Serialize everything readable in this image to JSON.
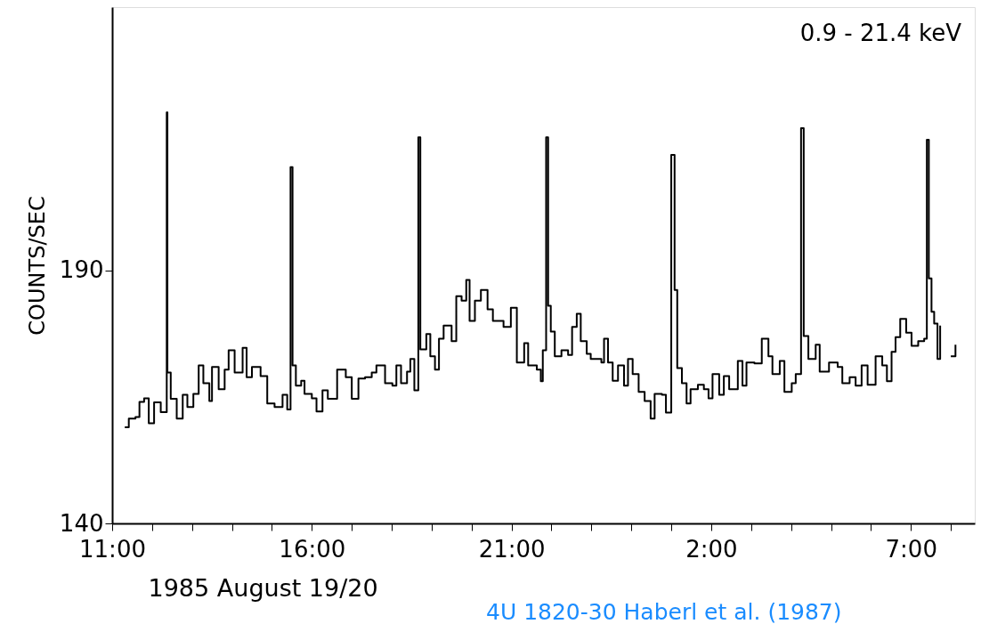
{
  "chart_data": {
    "type": "step",
    "xlabel": "1985 August 19/20",
    "ylabel": "COUNTS/SEC",
    "annotations": [
      "0.9 - 21.4 keV",
      "4U 1820-30 Haberl et al. (1987)"
    ],
    "xlim": [
      "1985-08-19T11:00",
      "1985-08-20T08:36"
    ],
    "ylim": [
      140,
      242
    ],
    "xticks": [
      {
        "value": "1985-08-19T11:00",
        "label": "11:00"
      },
      {
        "value": "1985-08-19T12:00",
        "label": null
      },
      {
        "value": "1985-08-19T13:00",
        "label": null
      },
      {
        "value": "1985-08-19T14:00",
        "label": null
      },
      {
        "value": "1985-08-19T15:00",
        "label": null
      },
      {
        "value": "1985-08-19T16:00",
        "label": "16:00"
      },
      {
        "value": "1985-08-19T17:00",
        "label": null
      },
      {
        "value": "1985-08-19T18:00",
        "label": null
      },
      {
        "value": "1985-08-19T19:00",
        "label": null
      },
      {
        "value": "1985-08-19T20:00",
        "label": null
      },
      {
        "value": "1985-08-19T21:00",
        "label": "21:00"
      },
      {
        "value": "1985-08-19T22:00",
        "label": null
      },
      {
        "value": "1985-08-19T23:00",
        "label": null
      },
      {
        "value": "1985-08-20T00:00",
        "label": null
      },
      {
        "value": "1985-08-20T01:00",
        "label": null
      },
      {
        "value": "1985-08-20T02:00",
        "label": "2:00"
      },
      {
        "value": "1985-08-20T03:00",
        "label": null
      },
      {
        "value": "1985-08-20T04:00",
        "label": null
      },
      {
        "value": "1985-08-20T05:00",
        "label": null
      },
      {
        "value": "1985-08-20T06:00",
        "label": null
      },
      {
        "value": "1985-08-20T07:00",
        "label": "7:00"
      },
      {
        "value": "1985-08-20T08:00",
        "label": null
      }
    ],
    "yticks": [
      140,
      190
    ],
    "grid": false,
    "marker": "none",
    "line_style": "solid",
    "series": [
      {
        "color": "#000000",
        "x": [
          "1985-08-19T11:19",
          "1985-08-19T11:25",
          "1985-08-19T11:35",
          "1985-08-19T11:41",
          "1985-08-19T11:48",
          "1985-08-19T11:55",
          "1985-08-19T12:03",
          "1985-08-19T12:13",
          "1985-08-19T12:22",
          "1985-08-19T12:23",
          "1985-08-19T12:28",
          "1985-08-19T12:37",
          "1985-08-19T12:46",
          "1985-08-19T12:53",
          "1985-08-19T13:02",
          "1985-08-19T13:10",
          "1985-08-19T13:17",
          "1985-08-19T13:26",
          "1985-08-19T13:30",
          "1985-08-19T13:40",
          "1985-08-19T13:49",
          "1985-08-19T13:55",
          "1985-08-19T14:04",
          "1985-08-19T14:16",
          "1985-08-19T14:22",
          "1985-08-19T14:30",
          "1985-08-19T14:43",
          "1985-08-19T14:53",
          "1985-08-19T15:04",
          "1985-08-19T15:16",
          "1985-08-19T15:23",
          "1985-08-19T15:28",
          "1985-08-19T15:31",
          "1985-08-19T15:36",
          "1985-08-19T15:44",
          "1985-08-19T15:49",
          "1985-08-19T16:00",
          "1985-08-19T16:07",
          "1985-08-19T16:16",
          "1985-08-19T16:24",
          "1985-08-19T16:38",
          "1985-08-19T16:51",
          "1985-08-19T17:00",
          "1985-08-19T17:10",
          "1985-08-19T17:20",
          "1985-08-19T17:30",
          "1985-08-19T17:37",
          "1985-08-19T17:50",
          "1985-08-19T18:01",
          "1985-08-19T18:07",
          "1985-08-19T18:14",
          "1985-08-19T18:23",
          "1985-08-19T18:28",
          "1985-08-19T18:34",
          "1985-08-19T18:40",
          "1985-08-19T18:43",
          "1985-08-19T18:52",
          "1985-08-19T18:58",
          "1985-08-19T19:05",
          "1985-08-19T19:11",
          "1985-08-19T19:18",
          "1985-08-19T19:30",
          "1985-08-19T19:37",
          "1985-08-19T19:45",
          "1985-08-19T19:52",
          "1985-08-19T19:57",
          "1985-08-19T20:05",
          "1985-08-19T20:14",
          "1985-08-19T20:24",
          "1985-08-19T20:32",
          "1985-08-19T20:48",
          "1985-08-19T20:59",
          "1985-08-19T21:08",
          "1985-08-19T21:19",
          "1985-08-19T21:25",
          "1985-08-19T21:38",
          "1985-08-19T21:44",
          "1985-08-19T21:47",
          "1985-08-19T21:52",
          "1985-08-19T21:55",
          "1985-08-19T21:59",
          "1985-08-19T22:05",
          "1985-08-19T22:15",
          "1985-08-19T22:25",
          "1985-08-19T22:31",
          "1985-08-19T22:38",
          "1985-08-19T22:44",
          "1985-08-19T22:53",
          "1985-08-19T22:59",
          "1985-08-19T23:15",
          "1985-08-19T23:19",
          "1985-08-19T23:25",
          "1985-08-19T23:32",
          "1985-08-19T23:40",
          "1985-08-19T23:49",
          "1985-08-19T23:55",
          "1985-08-20T00:02",
          "1985-08-20T00:11",
          "1985-08-20T00:20",
          "1985-08-20T00:29",
          "1985-08-20T00:35",
          "1985-08-20T00:46",
          "1985-08-20T00:52",
          "1985-08-20T01:00",
          "1985-08-20T01:05",
          "1985-08-20T01:09",
          "1985-08-20T01:16",
          "1985-08-20T01:23",
          "1985-08-20T01:29",
          "1985-08-20T01:40",
          "1985-08-20T01:49",
          "1985-08-20T01:56",
          "1985-08-20T02:02",
          "1985-08-20T02:12",
          "1985-08-20T02:19",
          "1985-08-20T02:27",
          "1985-08-20T02:40",
          "1985-08-20T02:47",
          "1985-08-20T02:53",
          "1985-08-20T03:05",
          "1985-08-20T03:16",
          "1985-08-20T03:26",
          "1985-08-20T03:32",
          "1985-08-20T03:43",
          "1985-08-20T03:50",
          "1985-08-20T04:01",
          "1985-08-20T04:07",
          "1985-08-20T04:15",
          "1985-08-20T04:19",
          "1985-08-20T04:26",
          "1985-08-20T04:37",
          "1985-08-20T04:43",
          "1985-08-20T04:57",
          "1985-08-20T05:10",
          "1985-08-20T05:17",
          "1985-08-20T05:28",
          "1985-08-20T05:37",
          "1985-08-20T05:46",
          "1985-08-20T05:55",
          "1985-08-20T06:07",
          "1985-08-20T06:17",
          "1985-08-20T06:24",
          "1985-08-20T06:31",
          "1985-08-20T06:37",
          "1985-08-20T06:44",
          "1985-08-20T06:53",
          "1985-08-20T07:01",
          "1985-08-20T07:11",
          "1985-08-20T07:20",
          "1985-08-20T07:24",
          "1985-08-20T07:27",
          "1985-08-20T07:31",
          "1985-08-20T07:35",
          "1985-08-20T07:40",
          "1985-08-20T07:44",
          "1985-08-20T07:51",
          "1985-08-20T08:00",
          "1985-08-20T08:07"
        ],
        "values": [
          159,
          160.7,
          161,
          164,
          164.7,
          159.8,
          163.9,
          162,
          221.2,
          169.8,
          164.6,
          160.7,
          165.4,
          163,
          165.6,
          171.2,
          167.7,
          164.2,
          170.9,
          166.5,
          170.4,
          174.2,
          169.8,
          174.7,
          168.9,
          170.9,
          169.1,
          163.7,
          163,
          165.4,
          162.5,
          210.4,
          171.2,
          167.2,
          168.2,
          165.6,
          164.7,
          162.1,
          166.3,
          164.6,
          170.4,
          168.9,
          164.6,
          168.6,
          168.9,
          169.8,
          171.2,
          167.7,
          167.2,
          171.2,
          167.7,
          170,
          172.5,
          166.3,
          216.3,
          174.4,
          177.4,
          173,
          170.4,
          176.5,
          179.1,
          176,
          184.9,
          184,
          188.1,
          180,
          184,
          186.1,
          182.3,
          180,
          178.8,
          182.6,
          171.8,
          175.6,
          171.2,
          170.4,
          168.1,
          174.2,
          216.3,
          183,
          177.9,
          173,
          174.2,
          173.3,
          178.8,
          181.4,
          176,
          173.5,
          172.5,
          171.8,
          176.5,
          171.8,
          168.2,
          171.2,
          167.2,
          172.5,
          169.5,
          166,
          164.2,
          160.7,
          165.6,
          165.4,
          161.9,
          212.8,
          186.1,
          170.7,
          167.7,
          163.7,
          166.5,
          167.4,
          166.5,
          164.7,
          169.5,
          165.4,
          169.1,
          166.5,
          172.1,
          167.2,
          171.8,
          171.6,
          176.5,
          173,
          169.5,
          172.1,
          166,
          167.7,
          169.5,
          218.1,
          177,
          172.5,
          175.3,
          170,
          171.8,
          170.9,
          167.7,
          168.9,
          167.2,
          171.2,
          167.4,
          173,
          171.2,
          168.1,
          173.9,
          176.8,
          180.4,
          177.7,
          175.1,
          176,
          176.5,
          215.8,
          188.4,
          181.8,
          179.5,
          172.5,
          179.1,
          null,
          173,
          175.3
        ]
      }
    ]
  }
}
